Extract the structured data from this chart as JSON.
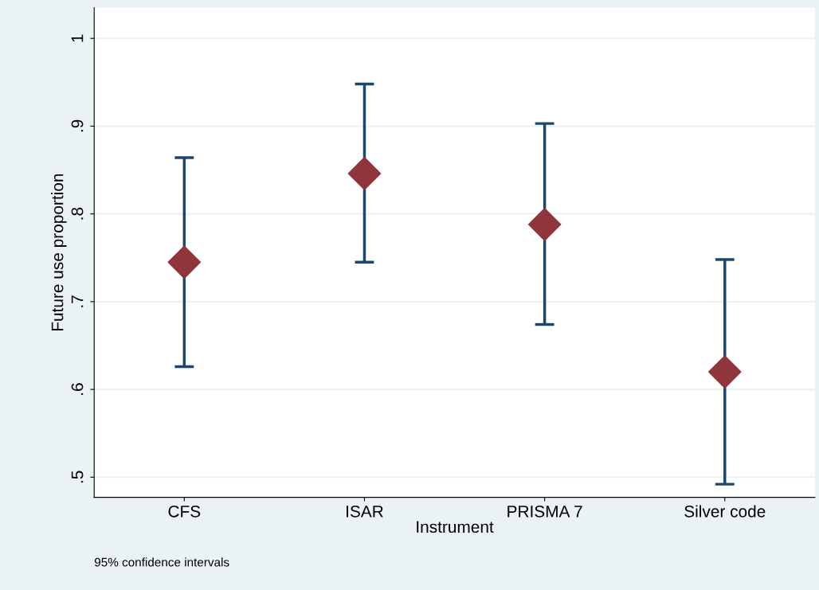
{
  "chart_data": {
    "type": "scatter",
    "xlabel": "Instrument",
    "ylabel": "Future use proportion",
    "categories": [
      "CFS",
      "ISAR",
      "PRISMA 7",
      "Silver code"
    ],
    "series": [
      {
        "color": "#90353b",
        "values": [
          0.745,
          0.846,
          0.788,
          0.62
        ],
        "errors": [
          [
            0.626,
            0.864
          ],
          [
            0.745,
            0.948
          ],
          [
            0.674,
            0.903
          ],
          [
            0.492,
            0.748
          ]
        ]
      }
    ],
    "ylim": [
      0.477,
      1.035
    ],
    "yticks": [
      {
        "value": 0.5,
        "label": ".5"
      },
      {
        "value": 0.6,
        "label": ".6"
      },
      {
        "value": 0.7,
        "label": ".7"
      },
      {
        "value": 0.8,
        "label": ".8"
      },
      {
        "value": 0.9,
        "label": ".9"
      },
      1
    ],
    "grid": "y",
    "marker": "diamond",
    "annotations": [
      "95% confidence intervals"
    ]
  }
}
